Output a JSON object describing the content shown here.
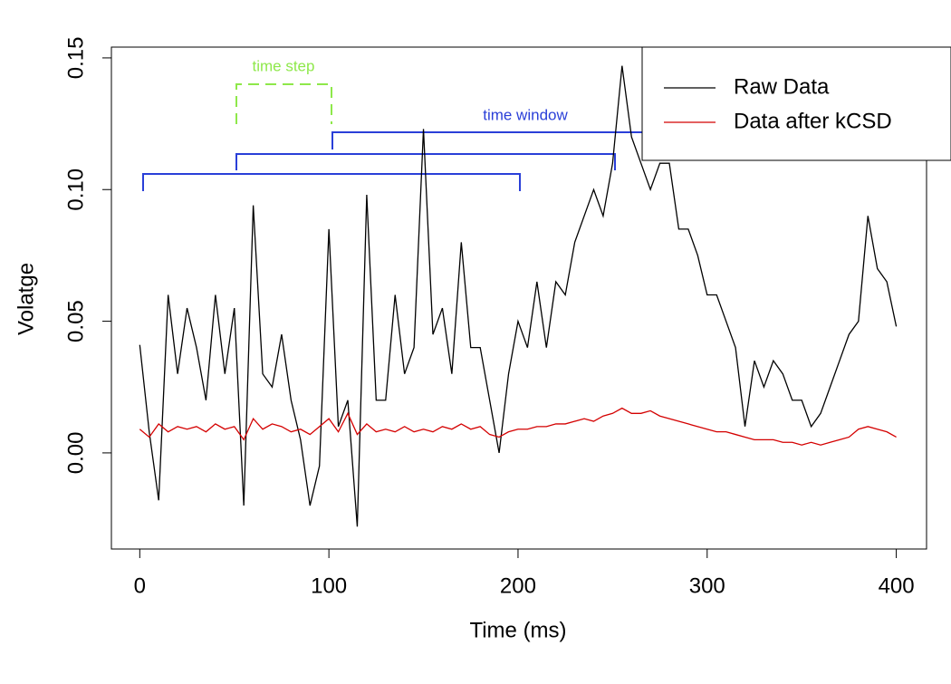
{
  "chart_data": {
    "type": "line",
    "x_label": "Time (ms)",
    "y_label": "Volatge",
    "x": [
      0,
      5,
      10,
      15,
      20,
      25,
      30,
      35,
      40,
      45,
      50,
      55,
      60,
      65,
      70,
      75,
      80,
      85,
      90,
      95,
      100,
      105,
      110,
      115,
      120,
      125,
      130,
      135,
      140,
      145,
      150,
      155,
      160,
      165,
      170,
      175,
      180,
      185,
      190,
      195,
      200,
      205,
      210,
      215,
      220,
      225,
      230,
      235,
      240,
      245,
      250,
      255,
      260,
      265,
      270,
      275,
      280,
      285,
      290,
      295,
      300,
      305,
      310,
      315,
      320,
      325,
      330,
      335,
      340,
      345,
      350,
      355,
      360,
      365,
      370,
      375,
      380,
      385,
      390,
      395,
      400
    ],
    "series": [
      {
        "name": "Raw Data",
        "color": "#000000",
        "values": [
          0.041,
          0.008,
          -0.018,
          0.06,
          0.03,
          0.055,
          0.04,
          0.02,
          0.06,
          0.03,
          0.055,
          -0.02,
          0.094,
          0.03,
          0.025,
          0.045,
          0.02,
          0.005,
          -0.02,
          -0.005,
          0.085,
          0.01,
          0.02,
          -0.028,
          0.098,
          0.02,
          0.02,
          0.06,
          0.03,
          0.04,
          0.123,
          0.045,
          0.055,
          0.03,
          0.08,
          0.04,
          0.04,
          0.02,
          0.0,
          0.03,
          0.05,
          0.04,
          0.065,
          0.04,
          0.065,
          0.06,
          0.08,
          0.09,
          0.1,
          0.09,
          0.11,
          0.147,
          0.12,
          0.11,
          0.1,
          0.11,
          0.11,
          0.085,
          0.085,
          0.075,
          0.06,
          0.06,
          0.05,
          0.04,
          0.01,
          0.035,
          0.025,
          0.035,
          0.03,
          0.02,
          0.02,
          0.01,
          0.015,
          0.025,
          0.035,
          0.045,
          0.05,
          0.09,
          0.07,
          0.065,
          0.048
        ]
      },
      {
        "name": "Data after kCSD",
        "color": "#d40000",
        "values": [
          0.009,
          0.006,
          0.011,
          0.008,
          0.01,
          0.009,
          0.01,
          0.008,
          0.011,
          0.009,
          0.01,
          0.005,
          0.013,
          0.009,
          0.011,
          0.01,
          0.008,
          0.009,
          0.007,
          0.01,
          0.013,
          0.008,
          0.015,
          0.007,
          0.011,
          0.008,
          0.009,
          0.008,
          0.01,
          0.008,
          0.009,
          0.008,
          0.01,
          0.009,
          0.011,
          0.009,
          0.01,
          0.007,
          0.006,
          0.008,
          0.009,
          0.009,
          0.01,
          0.01,
          0.011,
          0.011,
          0.012,
          0.013,
          0.012,
          0.014,
          0.015,
          0.017,
          0.015,
          0.015,
          0.016,
          0.014,
          0.013,
          0.012,
          0.011,
          0.01,
          0.009,
          0.008,
          0.008,
          0.007,
          0.006,
          0.005,
          0.005,
          0.005,
          0.004,
          0.004,
          0.003,
          0.004,
          0.003,
          0.004,
          0.005,
          0.006,
          0.009,
          0.01,
          0.009,
          0.008,
          0.006
        ]
      }
    ],
    "xlim": [
      -15,
      416
    ],
    "ylim": [
      -0.0365,
      0.1541
    ],
    "xticks": [
      0,
      100,
      200,
      300,
      400
    ],
    "yticks": [
      {
        "value": 0,
        "label": "0.00"
      },
      0.05,
      {
        "value": 0.1,
        "label": "0.10"
      },
      0.15
    ],
    "grid": false,
    "legend": "top right",
    "annotations": [
      {
        "text": "time step",
        "color": "#8ee84a"
      },
      {
        "text": "time window",
        "color": "#2a3fd8"
      }
    ]
  }
}
